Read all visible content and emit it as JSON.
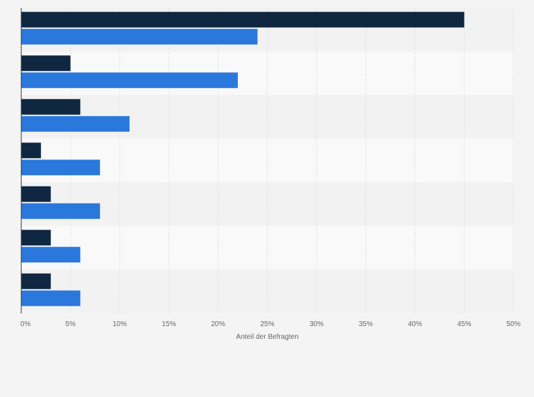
{
  "chart_data": {
    "type": "bar",
    "orientation": "horizontal",
    "categories": [
      "",
      "",
      "",
      "",
      "",
      "",
      ""
    ],
    "series": [
      {
        "values": [
          45,
          5,
          6,
          2,
          3,
          3,
          3
        ],
        "color": "#0f2741"
      },
      {
        "values": [
          24,
          22,
          11,
          8,
          8,
          6,
          6
        ],
        "color": "#2a78dc"
      }
    ],
    "xlabel": "Anteil der Befragten",
    "ylabel": "",
    "xlim": [
      0,
      50
    ],
    "x_ticks": [
      0,
      5,
      10,
      15,
      20,
      25,
      30,
      35,
      40,
      45,
      50
    ],
    "x_tick_labels": [
      "0%",
      "5%",
      "10%",
      "15%",
      "20%",
      "25%",
      "30%",
      "35%",
      "40%",
      "45%",
      "50%"
    ],
    "grid": true,
    "legend": "none",
    "row_band_colors": [
      "#f2f2f2",
      "#f9f9f9"
    ]
  }
}
